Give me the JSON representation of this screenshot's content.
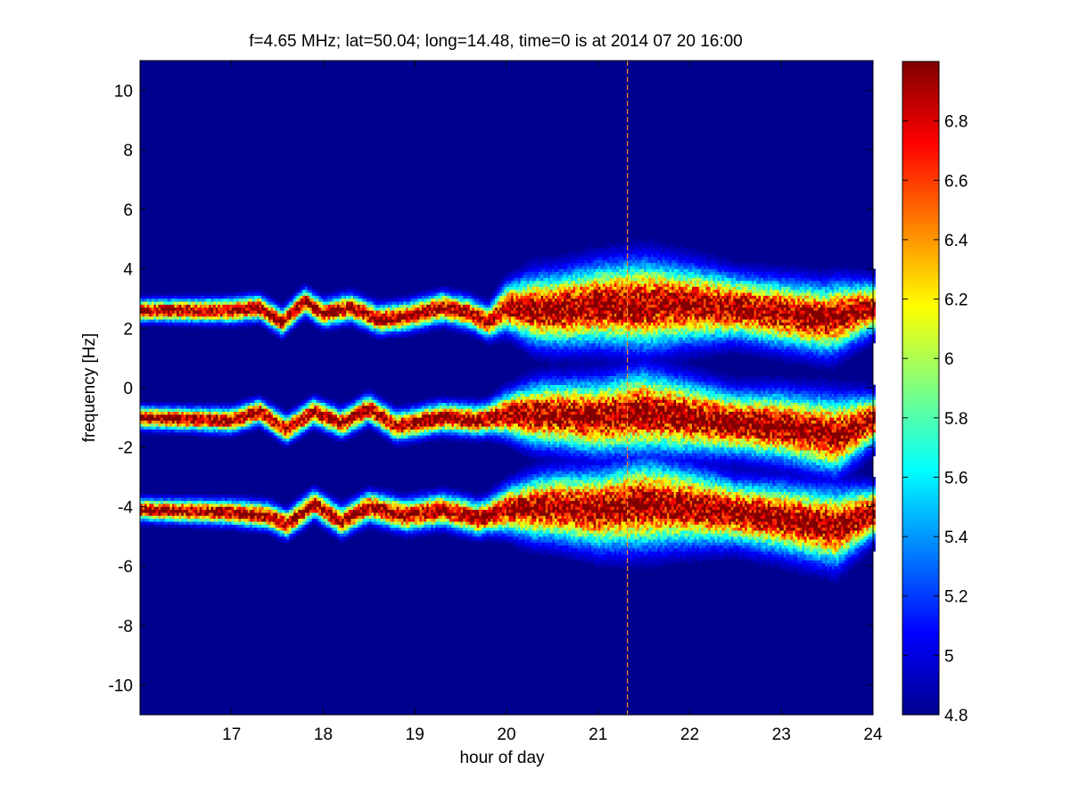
{
  "chart_data": {
    "type": "heatmap",
    "title": "f=4.65 MHz;  lat=50.04; long=14.48, time=0 is at 2014 07 20 16:00",
    "xlabel": "hour of day",
    "ylabel": "frequency [Hz]",
    "xlim": [
      16.0,
      24.0
    ],
    "ylim": [
      -11,
      11
    ],
    "x_ticks": [
      "17",
      "18",
      "19",
      "20",
      "21",
      "22",
      "23",
      "24"
    ],
    "y_ticks": [
      "10",
      "8",
      "6",
      "4",
      "2",
      "0",
      "-2",
      "-4",
      "-6",
      "-8",
      "-10"
    ],
    "colorbar": {
      "range": [
        4.8,
        7.0
      ],
      "ticks": [
        "4.8",
        "5",
        "5.2",
        "5.4",
        "5.6",
        "5.8",
        "6",
        "6.2",
        "6.4",
        "6.6",
        "6.8"
      ],
      "colormap": "jet"
    },
    "background_level": 4.8,
    "bands": [
      {
        "name": "upper",
        "center_hz": 2.6,
        "ridge": [
          [
            16.0,
            2.6
          ],
          [
            17.0,
            2.6
          ],
          [
            17.3,
            2.7
          ],
          [
            17.55,
            2.2
          ],
          [
            17.8,
            2.9
          ],
          [
            18.0,
            2.5
          ],
          [
            18.3,
            2.7
          ],
          [
            18.6,
            2.3
          ],
          [
            18.9,
            2.4
          ],
          [
            19.3,
            2.7
          ],
          [
            19.6,
            2.5
          ],
          [
            19.8,
            2.2
          ],
          [
            20.0,
            2.7
          ],
          [
            20.5,
            2.6
          ],
          [
            21.0,
            2.8
          ],
          [
            21.5,
            2.8
          ],
          [
            22.0,
            2.8
          ],
          [
            22.5,
            2.7
          ],
          [
            23.0,
            2.5
          ],
          [
            23.5,
            2.3
          ],
          [
            24.0,
            2.7
          ]
        ],
        "width_hz": [
          [
            16.0,
            0.15
          ],
          [
            19.8,
            0.3
          ],
          [
            20.3,
            0.9
          ],
          [
            21.5,
            1.2
          ],
          [
            22.5,
            0.8
          ],
          [
            23.6,
            0.9
          ],
          [
            24.0,
            0.6
          ]
        ]
      },
      {
        "name": "middle",
        "center_hz": -1.0,
        "ridge": [
          [
            16.0,
            -1.0
          ],
          [
            17.0,
            -1.1
          ],
          [
            17.3,
            -0.8
          ],
          [
            17.6,
            -1.4
          ],
          [
            17.9,
            -0.8
          ],
          [
            18.2,
            -1.2
          ],
          [
            18.5,
            -0.7
          ],
          [
            18.8,
            -1.3
          ],
          [
            19.3,
            -1.0
          ],
          [
            19.7,
            -1.1
          ],
          [
            20.0,
            -0.9
          ],
          [
            20.5,
            -0.9
          ],
          [
            21.0,
            -1.0
          ],
          [
            21.5,
            -0.8
          ],
          [
            22.0,
            -1.0
          ],
          [
            22.5,
            -1.2
          ],
          [
            23.0,
            -1.3
          ],
          [
            23.6,
            -1.6
          ],
          [
            24.0,
            -1.1
          ]
        ],
        "width_hz": [
          [
            16.0,
            0.15
          ],
          [
            19.8,
            0.3
          ],
          [
            20.3,
            0.8
          ],
          [
            21.5,
            1.1
          ],
          [
            22.5,
            0.8
          ],
          [
            23.6,
            1.0
          ],
          [
            24.0,
            0.6
          ]
        ]
      },
      {
        "name": "lower",
        "center_hz": -4.2,
        "ridge": [
          [
            16.0,
            -4.1
          ],
          [
            17.0,
            -4.2
          ],
          [
            17.4,
            -4.3
          ],
          [
            17.6,
            -4.6
          ],
          [
            17.9,
            -3.9
          ],
          [
            18.2,
            -4.5
          ],
          [
            18.5,
            -4.0
          ],
          [
            18.9,
            -4.3
          ],
          [
            19.3,
            -4.1
          ],
          [
            19.7,
            -4.4
          ],
          [
            20.0,
            -4.1
          ],
          [
            20.5,
            -4.0
          ],
          [
            21.0,
            -4.1
          ],
          [
            21.5,
            -3.9
          ],
          [
            22.0,
            -4.0
          ],
          [
            22.5,
            -4.2
          ],
          [
            23.0,
            -4.4
          ],
          [
            23.6,
            -4.7
          ],
          [
            24.0,
            -4.2
          ]
        ],
        "width_hz": [
          [
            16.0,
            0.15
          ],
          [
            19.8,
            0.35
          ],
          [
            20.3,
            0.8
          ],
          [
            21.5,
            1.2
          ],
          [
            22.5,
            0.8
          ],
          [
            23.6,
            1.0
          ],
          [
            24.0,
            0.6
          ]
        ]
      }
    ],
    "vertical_marker_hour": 21.32
  }
}
